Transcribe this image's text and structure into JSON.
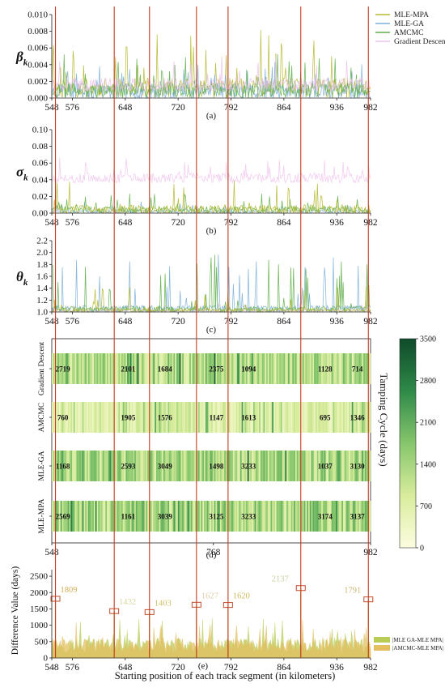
{
  "x_ticks": [
    548,
    576,
    648,
    720,
    792,
    864,
    936,
    982
  ],
  "red_lines_km": [
    553,
    633,
    681,
    745,
    788,
    887,
    979
  ],
  "chart_data": [
    {
      "type": "line",
      "panel": "(a)",
      "ylabel_sym": "β",
      "ylabel_sub": "k",
      "xlim": [
        548,
        982
      ],
      "ylim": [
        0,
        0.01
      ],
      "y_ticks": [
        "0.000",
        "0.002",
        "0.004",
        "0.006",
        "0.008",
        "0.010"
      ],
      "grid": false,
      "legend": "top-right",
      "series": [
        {
          "name": "MLE-MPA",
          "color": "#b5b82e",
          "base": 0.0012,
          "amp": 0.0024,
          "spike": 0.006,
          "seed": 11
        },
        {
          "name": "MLE-GA",
          "color": "#7fb0d8",
          "base": 0.0008,
          "amp": 0.0018,
          "spike": 0.003,
          "seed": 23
        },
        {
          "name": "AMCMC",
          "color": "#62b04c",
          "base": 0.0009,
          "amp": 0.0019,
          "spike": 0.0045,
          "seed": 37
        },
        {
          "name": "Gradient Descent",
          "color": "#ecc2ec",
          "base": 0.0016,
          "amp": 0.0016,
          "spike": 0.003,
          "seed": 41
        }
      ]
    },
    {
      "type": "line",
      "panel": "(b)",
      "ylabel_sym": "σ",
      "ylabel_sub": "k",
      "xlim": [
        548,
        982
      ],
      "ylim": [
        0,
        0.1
      ],
      "y_ticks": [
        "0.00",
        "0.02",
        "0.04",
        "0.06",
        "0.08",
        "0.10"
      ],
      "grid": false,
      "series": [
        {
          "name": "Gradient Descent",
          "color": "#f1c8ee",
          "base": 0.042,
          "amp": 0.012,
          "spike": 0.02,
          "seed": 5
        },
        {
          "name": "MLE-GA",
          "color": "#7fb0d8",
          "base": 0.002,
          "amp": 0.004,
          "spike": 0.01,
          "seed": 17
        },
        {
          "name": "AMCMC",
          "color": "#62b04c",
          "base": 0.004,
          "amp": 0.008,
          "spike": 0.02,
          "seed": 29
        },
        {
          "name": "MLE-MPA",
          "color": "#b5b82e",
          "base": 0.004,
          "amp": 0.012,
          "spike": 0.035,
          "seed": 31
        }
      ]
    },
    {
      "type": "line",
      "panel": "(c)",
      "ylabel_sym": "θ",
      "ylabel_sub": "k",
      "xlim": [
        548,
        982
      ],
      "ylim": [
        1.0,
        2.2
      ],
      "y_ticks": [
        "1.0",
        "1.2",
        "1.4",
        "1.6",
        "1.8",
        "2.0",
        "2.2"
      ],
      "grid": false,
      "series": [
        {
          "name": "Gradient Descent",
          "color": "#f1c8ee",
          "base": 1.02,
          "amp": 0.04,
          "spike": 0.1,
          "seed": 3
        },
        {
          "name": "MLE-GA",
          "color": "#7fb0d8",
          "base": 1.05,
          "amp": 0.12,
          "spike": 0.9,
          "seed": 13
        },
        {
          "name": "AMCMC",
          "color": "#62b04c",
          "base": 1.05,
          "amp": 0.1,
          "spike": 0.9,
          "seed": 19
        },
        {
          "name": "MLE-MPA",
          "color": "#b5b82e",
          "base": 1.03,
          "amp": 0.06,
          "spike": 0.4,
          "seed": 43
        }
      ]
    },
    {
      "type": "heatmap",
      "panel": "(d)",
      "rows": [
        "Gradient Descent",
        "AMCMC",
        "MLE-GA",
        "MLE-MPA"
      ],
      "row_seeds": [
        7,
        53,
        61,
        71
      ],
      "row_means": [
        1500,
        900,
        1600,
        1700
      ],
      "x_ticks": [
        548,
        768,
        982
      ],
      "cell_labels": [
        {
          "row": 0,
          "items": [
            {
              "km": 563,
              "v": "2719"
            },
            {
              "km": 652,
              "v": "2101"
            },
            {
              "km": 702,
              "v": "1684"
            },
            {
              "km": 772,
              "v": "2375"
            },
            {
              "km": 816,
              "v": "1094"
            },
            {
              "km": 920,
              "v": "1128"
            },
            {
              "km": 964,
              "v": "714"
            }
          ]
        },
        {
          "row": 1,
          "items": [
            {
              "km": 563,
              "v": "760"
            },
            {
              "km": 652,
              "v": "1905"
            },
            {
              "km": 702,
              "v": "1576"
            },
            {
              "km": 772,
              "v": "1147"
            },
            {
              "km": 816,
              "v": "1613"
            },
            {
              "km": 920,
              "v": "695"
            },
            {
              "km": 964,
              "v": "1346"
            }
          ]
        },
        {
          "row": 2,
          "items": [
            {
              "km": 563,
              "v": "1168"
            },
            {
              "km": 652,
              "v": "2593"
            },
            {
              "km": 702,
              "v": "3049"
            },
            {
              "km": 772,
              "v": "1498"
            },
            {
              "km": 816,
              "v": "3233"
            },
            {
              "km": 920,
              "v": "1037"
            },
            {
              "km": 964,
              "v": "3130"
            }
          ]
        },
        {
          "row": 3,
          "items": [
            {
              "km": 563,
              "v": "2569"
            },
            {
              "km": 652,
              "v": "1161"
            },
            {
              "km": 702,
              "v": "3039"
            },
            {
              "km": 772,
              "v": "3125"
            },
            {
              "km": 816,
              "v": "3233"
            },
            {
              "km": 920,
              "v": "3174"
            },
            {
              "km": 964,
              "v": "3137"
            }
          ]
        }
      ],
      "colorbar": {
        "min": 0,
        "max": 3500,
        "ticks": [
          "3500",
          "2800",
          "2100",
          "1400",
          "700",
          "0"
        ],
        "label": "Tamping Cycle (days)",
        "colors": [
          "#fdfde0",
          "#d8ec9c",
          "#86c66c",
          "#2f8a48",
          "#0e4a2a"
        ]
      }
    },
    {
      "type": "bar",
      "panel": "(e)",
      "ylabel": "Difference Value (days)",
      "xlim": [
        548,
        982
      ],
      "ylim": [
        0,
        2700
      ],
      "y_ticks": [
        "0",
        "500",
        "1000",
        "1500",
        "2000",
        "2500"
      ],
      "series": [
        {
          "name": "|MLE GA-MLE MPA|",
          "color": "#b9cc56",
          "seed": 97
        },
        {
          "name": "|AMCMC-MLE MPA|",
          "color": "#e3bf5f",
          "seed": 101
        }
      ],
      "legend": "bottom-right",
      "peaks": [
        {
          "km": 553,
          "v": 1809,
          "label": "1809",
          "color": "#d4b056",
          "dx": 6
        },
        {
          "km": 633,
          "v": 1432,
          "label": "1432",
          "color": "#d8d8a0",
          "dx": 6
        },
        {
          "km": 681,
          "v": 1403,
          "label": "1403",
          "color": "#cfc26a",
          "dx": 6
        },
        {
          "km": 745,
          "v": 1627,
          "label": "1627",
          "color": "#e0cfa8",
          "dx": 6
        },
        {
          "km": 788,
          "v": 1620,
          "label": "1620",
          "color": "#cdb85a",
          "dx": 6
        },
        {
          "km": 887,
          "v": 2137,
          "label": "2137",
          "color": "#c6d09a",
          "dx": -36
        },
        {
          "km": 979,
          "v": 1791,
          "label": "1791",
          "color": "#cbb56a",
          "dx": -30
        }
      ]
    }
  ],
  "panel_labels": [
    "(a)",
    "(b)",
    "(c)",
    "(d)",
    "(e)"
  ],
  "xlabel": "Starting position of each track segment (in kilometers)"
}
